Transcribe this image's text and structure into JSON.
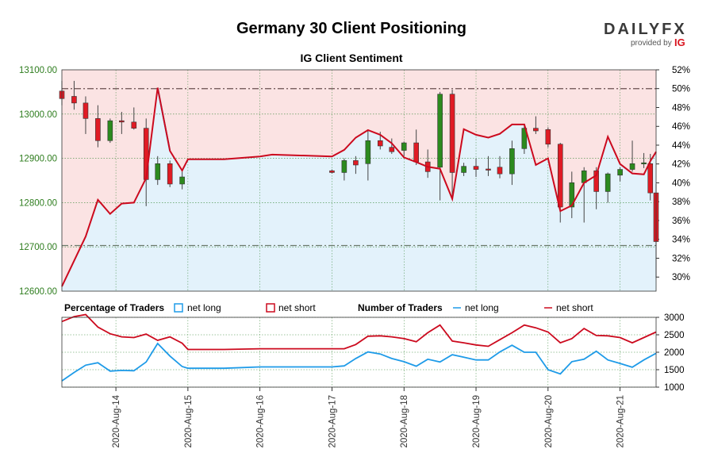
{
  "title": "Germany 30 Client Positioning",
  "subtitle": "IG Client Sentiment",
  "logo": {
    "brand": "DAILYFX",
    "provided_by": "provided by",
    "ig": "IG",
    "accent": "#d9141e"
  },
  "colors": {
    "net_long": "#1e9be8",
    "net_short": "#cc0a1e",
    "bull": "#2c8a1e",
    "bear": "#e01b24",
    "long_fill": "#e3f2fb",
    "short_fill": "#fbe3e3",
    "left_axis": "#2e7d1e"
  },
  "legend": {
    "pct_title": "Percentage of Traders",
    "pct_long": "net long",
    "pct_short": "net short",
    "num_title": "Number of Traders",
    "num_long": "net long",
    "num_short": "net short"
  },
  "chart_data": {
    "type": "candlestick",
    "y_left": {
      "min": 12600,
      "max": 13100,
      "ticks": [
        "12600.00",
        "12700.00",
        "12800.00",
        "12900.00",
        "13000.00",
        "13100.00"
      ]
    },
    "y_right": {
      "min": 28.5,
      "max": 52,
      "ticks": [
        "30%",
        "32%",
        "34%",
        "36%",
        "38%",
        "40%",
        "42%",
        "44%",
        "46%",
        "48%",
        "50%",
        "52%"
      ]
    },
    "y_lower": {
      "min": 1000,
      "max": 3000,
      "ticks": [
        "1000",
        "1500",
        "2000",
        "2500",
        "3000"
      ]
    },
    "x_dates": [
      {
        "label": "2020-Aug-14",
        "t": 14
      },
      {
        "label": "2020-Aug-15",
        "t": 15
      },
      {
        "label": "2020-Aug-16",
        "t": 16
      },
      {
        "label": "2020-Aug-17",
        "t": 17
      },
      {
        "label": "2020-Aug-18",
        "t": 18
      },
      {
        "label": "2020-Aug-19",
        "t": 19
      },
      {
        "label": "2020-Aug-20",
        "t": 20
      },
      {
        "label": "2020-Aug-21",
        "t": 21
      }
    ],
    "x_range": [
      13.25,
      21.5
    ],
    "reference_lines": {
      "upper_pct": 50,
      "lower_price": 12703
    },
    "candles": [
      {
        "t": 13.25,
        "o": 13052,
        "h": 13075,
        "l": 13020,
        "c": 13035
      },
      {
        "t": 13.42,
        "o": 13040,
        "h": 13075,
        "l": 13010,
        "c": 13025
      },
      {
        "t": 13.58,
        "o": 13025,
        "h": 13040,
        "l": 12955,
        "c": 12990
      },
      {
        "t": 13.75,
        "o": 12990,
        "h": 13020,
        "l": 12925,
        "c": 12940
      },
      {
        "t": 13.92,
        "o": 12940,
        "h": 12990,
        "l": 12935,
        "c": 12985
      },
      {
        "t": 14.08,
        "o": 12985,
        "h": 13005,
        "l": 12955,
        "c": 12982
      },
      {
        "t": 14.25,
        "o": 12982,
        "h": 13015,
        "l": 12965,
        "c": 12968
      },
      {
        "t": 14.42,
        "o": 12968,
        "h": 12990,
        "l": 12792,
        "c": 12852
      },
      {
        "t": 14.58,
        "o": 12852,
        "h": 12905,
        "l": 12840,
        "c": 12888
      },
      {
        "t": 14.75,
        "o": 12888,
        "h": 12895,
        "l": 12835,
        "c": 12842
      },
      {
        "t": 14.92,
        "o": 12842,
        "h": 12870,
        "l": 12830,
        "c": 12858
      },
      {
        "t": 17.0,
        "o": 12872,
        "h": 12875,
        "l": 12866,
        "c": 12868
      },
      {
        "t": 17.17,
        "o": 12868,
        "h": 12900,
        "l": 12850,
        "c": 12895
      },
      {
        "t": 17.33,
        "o": 12895,
        "h": 12905,
        "l": 12865,
        "c": 12885
      },
      {
        "t": 17.5,
        "o": 12888,
        "h": 12965,
        "l": 12850,
        "c": 12940
      },
      {
        "t": 17.67,
        "o": 12940,
        "h": 12960,
        "l": 12920,
        "c": 12928
      },
      {
        "t": 17.83,
        "o": 12925,
        "h": 12945,
        "l": 12910,
        "c": 12915
      },
      {
        "t": 18.0,
        "o": 12918,
        "h": 12938,
        "l": 12905,
        "c": 12935
      },
      {
        "t": 18.17,
        "o": 12935,
        "h": 12965,
        "l": 12885,
        "c": 12892
      },
      {
        "t": 18.33,
        "o": 12892,
        "h": 12920,
        "l": 12856,
        "c": 12870
      },
      {
        "t": 18.5,
        "o": 12880,
        "h": 13050,
        "l": 12805,
        "c": 13045
      },
      {
        "t": 18.67,
        "o": 13045,
        "h": 13055,
        "l": 12810,
        "c": 12868
      },
      {
        "t": 18.83,
        "o": 12868,
        "h": 12890,
        "l": 12860,
        "c": 12882
      },
      {
        "t": 19.0,
        "o": 12882,
        "h": 12900,
        "l": 12858,
        "c": 12875
      },
      {
        "t": 19.17,
        "o": 12876,
        "h": 12905,
        "l": 12860,
        "c": 12875
      },
      {
        "t": 19.33,
        "o": 12880,
        "h": 12905,
        "l": 12855,
        "c": 12865
      },
      {
        "t": 19.5,
        "o": 12865,
        "h": 12940,
        "l": 12840,
        "c": 12922
      },
      {
        "t": 19.67,
        "o": 12922,
        "h": 12975,
        "l": 12910,
        "c": 12968
      },
      {
        "t": 19.83,
        "o": 12968,
        "h": 12995,
        "l": 12955,
        "c": 12962
      },
      {
        "t": 20.0,
        "o": 12965,
        "h": 12970,
        "l": 12925,
        "c": 12932
      },
      {
        "t": 20.17,
        "o": 12932,
        "h": 12935,
        "l": 12755,
        "c": 12790
      },
      {
        "t": 20.33,
        "o": 12790,
        "h": 12870,
        "l": 12765,
        "c": 12845
      },
      {
        "t": 20.5,
        "o": 12845,
        "h": 12880,
        "l": 12755,
        "c": 12872
      },
      {
        "t": 20.67,
        "o": 12872,
        "h": 12880,
        "l": 12785,
        "c": 12825
      },
      {
        "t": 20.83,
        "o": 12825,
        "h": 12868,
        "l": 12800,
        "c": 12865
      },
      {
        "t": 21.0,
        "o": 12862,
        "h": 12880,
        "l": 12848,
        "c": 12875
      },
      {
        "t": 21.17,
        "o": 12875,
        "h": 12940,
        "l": 12870,
        "c": 12888
      },
      {
        "t": 21.33,
        "o": 12890,
        "h": 12912,
        "l": 12878,
        "c": 12890
      },
      {
        "t": 21.42,
        "o": 12888,
        "h": 12910,
        "l": 12805,
        "c": 12822
      },
      {
        "t": 21.5,
        "o": 12822,
        "h": 12842,
        "l": 12630,
        "c": 12712
      }
    ],
    "pct_short": [
      [
        13.25,
        29.0
      ],
      [
        13.58,
        34.3
      ],
      [
        13.75,
        38.2
      ],
      [
        13.92,
        36.7
      ],
      [
        14.08,
        37.8
      ],
      [
        14.25,
        37.9
      ],
      [
        14.42,
        40.5
      ],
      [
        14.58,
        50.1
      ],
      [
        14.75,
        43.4
      ],
      [
        14.92,
        41.3
      ],
      [
        15.0,
        42.5
      ],
      [
        15.5,
        42.5
      ],
      [
        16.0,
        42.8
      ],
      [
        16.17,
        43.0
      ],
      [
        17.0,
        42.8
      ],
      [
        17.17,
        43.5
      ],
      [
        17.33,
        44.8
      ],
      [
        17.5,
        45.6
      ],
      [
        17.67,
        45.1
      ],
      [
        17.83,
        44.2
      ],
      [
        18.0,
        42.7
      ],
      [
        18.17,
        42.2
      ],
      [
        18.33,
        41.7
      ],
      [
        18.5,
        41.5
      ],
      [
        18.67,
        38.3
      ],
      [
        18.83,
        45.7
      ],
      [
        19.0,
        45.1
      ],
      [
        19.17,
        44.8
      ],
      [
        19.33,
        45.2
      ],
      [
        19.5,
        46.2
      ],
      [
        19.67,
        46.2
      ],
      [
        19.83,
        41.9
      ],
      [
        20.0,
        42.6
      ],
      [
        20.17,
        37.0
      ],
      [
        20.33,
        37.6
      ],
      [
        20.5,
        40.0
      ],
      [
        20.67,
        40.8
      ],
      [
        20.83,
        44.9
      ],
      [
        21.0,
        42.0
      ],
      [
        21.17,
        41.0
      ],
      [
        21.33,
        40.9
      ],
      [
        21.42,
        42.3
      ],
      [
        21.5,
        43.3
      ]
    ],
    "num_short": [
      [
        13.25,
        2880
      ],
      [
        13.42,
        3020
      ],
      [
        13.58,
        3080
      ],
      [
        13.75,
        2720
      ],
      [
        13.92,
        2530
      ],
      [
        14.08,
        2440
      ],
      [
        14.25,
        2420
      ],
      [
        14.42,
        2520
      ],
      [
        14.58,
        2340
      ],
      [
        14.75,
        2440
      ],
      [
        14.92,
        2260
      ],
      [
        15.0,
        2080
      ],
      [
        15.5,
        2080
      ],
      [
        16.0,
        2100
      ],
      [
        16.17,
        2100
      ],
      [
        17.0,
        2100
      ],
      [
        17.17,
        2100
      ],
      [
        17.33,
        2220
      ],
      [
        17.5,
        2460
      ],
      [
        17.67,
        2470
      ],
      [
        17.83,
        2440
      ],
      [
        18.0,
        2390
      ],
      [
        18.17,
        2300
      ],
      [
        18.33,
        2560
      ],
      [
        18.5,
        2780
      ],
      [
        18.67,
        2320
      ],
      [
        18.83,
        2270
      ],
      [
        19.0,
        2210
      ],
      [
        19.17,
        2170
      ],
      [
        19.33,
        2360
      ],
      [
        19.5,
        2560
      ],
      [
        19.67,
        2780
      ],
      [
        19.83,
        2700
      ],
      [
        20.0,
        2580
      ],
      [
        20.17,
        2270
      ],
      [
        20.33,
        2390
      ],
      [
        20.5,
        2680
      ],
      [
        20.67,
        2480
      ],
      [
        20.83,
        2470
      ],
      [
        21.0,
        2420
      ],
      [
        21.17,
        2270
      ],
      [
        21.33,
        2420
      ],
      [
        21.5,
        2580
      ]
    ],
    "num_long": [
      [
        13.25,
        1180
      ],
      [
        13.42,
        1420
      ],
      [
        13.58,
        1630
      ],
      [
        13.75,
        1700
      ],
      [
        13.92,
        1460
      ],
      [
        14.08,
        1480
      ],
      [
        14.25,
        1470
      ],
      [
        14.42,
        1720
      ],
      [
        14.58,
        2250
      ],
      [
        14.75,
        1890
      ],
      [
        14.92,
        1590
      ],
      [
        15.0,
        1540
      ],
      [
        15.5,
        1540
      ],
      [
        16.0,
        1580
      ],
      [
        16.17,
        1580
      ],
      [
        17.0,
        1580
      ],
      [
        17.17,
        1610
      ],
      [
        17.33,
        1820
      ],
      [
        17.5,
        2010
      ],
      [
        17.67,
        1950
      ],
      [
        17.83,
        1820
      ],
      [
        18.0,
        1730
      ],
      [
        18.17,
        1600
      ],
      [
        18.33,
        1800
      ],
      [
        18.5,
        1720
      ],
      [
        18.67,
        1930
      ],
      [
        18.83,
        1860
      ],
      [
        19.0,
        1780
      ],
      [
        19.17,
        1780
      ],
      [
        19.33,
        2010
      ],
      [
        19.5,
        2200
      ],
      [
        19.67,
        2000
      ],
      [
        19.83,
        2000
      ],
      [
        20.0,
        1500
      ],
      [
        20.17,
        1380
      ],
      [
        20.33,
        1730
      ],
      [
        20.5,
        1800
      ],
      [
        20.67,
        2030
      ],
      [
        20.83,
        1780
      ],
      [
        21.0,
        1680
      ],
      [
        21.17,
        1570
      ],
      [
        21.33,
        1780
      ],
      [
        21.5,
        1970
      ]
    ]
  }
}
